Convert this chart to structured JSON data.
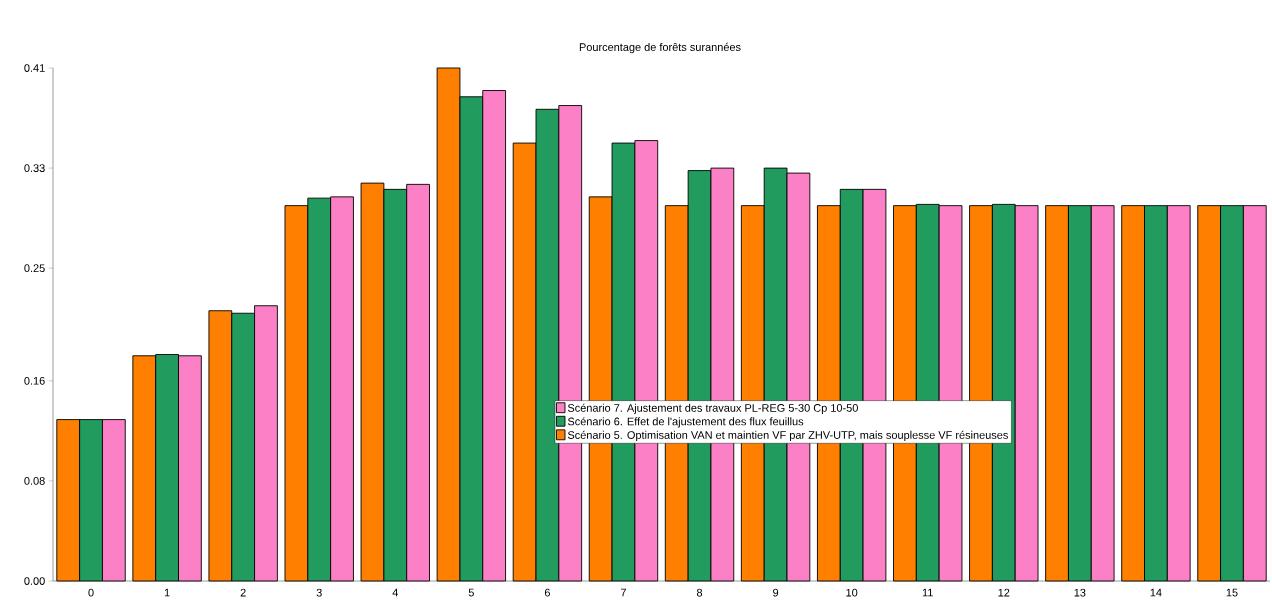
{
  "chart_data": {
    "type": "bar",
    "title": "Pourcentage de forêts surannées",
    "categories": [
      "0",
      "1",
      "2",
      "3",
      "4",
      "5",
      "6",
      "7",
      "8",
      "9",
      "10",
      "11",
      "12",
      "13",
      "14",
      "15"
    ],
    "series": [
      {
        "name": "Scénario 5. Optimisation VAN et maintien VF par ZHV-UTP, mais souplesse VF résineuses",
        "color": "#ff7f00",
        "values": [
          0.129,
          0.18,
          0.216,
          0.3,
          0.318,
          0.41,
          0.35,
          0.307,
          0.3,
          0.3,
          0.3,
          0.3,
          0.3,
          0.3,
          0.3,
          0.3
        ]
      },
      {
        "name": "Scénario 6. Effet de l'ajustement des flux feuillus",
        "color": "#219c5e",
        "values": [
          0.129,
          0.181,
          0.214,
          0.306,
          0.313,
          0.387,
          0.377,
          0.35,
          0.328,
          0.33,
          0.313,
          0.301,
          0.301,
          0.3,
          0.3,
          0.3
        ]
      },
      {
        "name": "Scénario 7. Ajustement des travaux PL-REG 5-30 Cp 10-50",
        "color": "#fc80c6",
        "values": [
          0.129,
          0.18,
          0.22,
          0.307,
          0.317,
          0.392,
          0.38,
          0.352,
          0.33,
          0.326,
          0.313,
          0.3,
          0.3,
          0.3,
          0.3,
          0.3
        ]
      }
    ],
    "ylim": [
      0,
      0.41
    ],
    "yticks": [
      {
        "value": 0,
        "label": "0.00"
      },
      {
        "value": 0.08,
        "label": "0.08"
      },
      {
        "value": 0.16,
        "label": "0.16"
      },
      {
        "value": 0.25,
        "label": "0.25"
      },
      {
        "value": 0.33,
        "label": "0.33"
      },
      {
        "value": 0.41,
        "label": "0.41"
      }
    ],
    "legend": "center",
    "grid": false
  }
}
